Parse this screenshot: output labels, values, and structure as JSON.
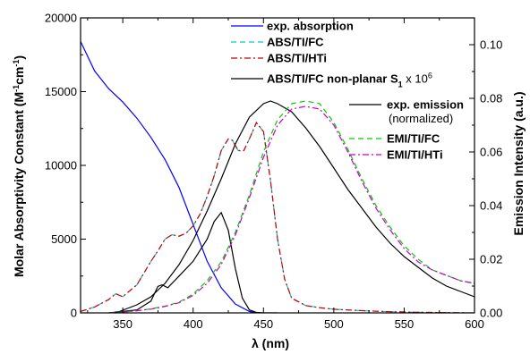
{
  "chart_data": {
    "type": "line",
    "xlabel": "λ (nm)",
    "ylabel_left": "Molar Absorptivity Constant (M-1cm-1)",
    "ylabel_left_parts": {
      "main": "Molar Absorptivity Constant (M",
      "sup1": "-1",
      "mid": "cm",
      "sup2": "-1",
      "end": ")"
    },
    "ylabel_right": "Emission Intensity (a.u.)",
    "xlim": [
      320,
      600
    ],
    "ylim_left": [
      0,
      20000
    ],
    "ylim_right": [
      0,
      0.11
    ],
    "x_ticks": [
      "350",
      "400",
      "450",
      "500",
      "550",
      "600"
    ],
    "y_left_ticks": [
      "0",
      "5000",
      "10000",
      "15000",
      "20000"
    ],
    "y_right_ticks": [
      "0.00",
      "0.02",
      "0.04",
      "0.06",
      "0.08",
      "0.10"
    ],
    "legend": [
      {
        "label": "exp. absorption",
        "color": "#0000ff",
        "dash": "solid"
      },
      {
        "label": "ABS/TI/FC",
        "color": "#00cccc",
        "dash": "dash"
      },
      {
        "label": "ABS/TI/HTi",
        "color": "#cc0000",
        "dash": "dashdot"
      },
      {
        "label": "ABS/TI/FC non-planar S1 x 10^6",
        "label_main": "ABS/TI/FC non-planar S",
        "label_sub": "1",
        "label_x": " x 10",
        "label_sup": "6",
        "color": "#000000",
        "dash": "solid"
      },
      {
        "label": "exp. emission",
        "sublabel": "(normalized)",
        "color": "#000000",
        "dash": "solid"
      },
      {
        "label": "EMI/TI/FC",
        "color": "#00cc00",
        "dash": "dash"
      },
      {
        "label": "EMI/TI/HTi",
        "color": "#cc00cc",
        "dash": "dashdot"
      }
    ],
    "series": [
      {
        "name": "exp. absorption",
        "axis": "left",
        "color": "#0000ff",
        "dash": "solid",
        "x": [
          320,
          330,
          340,
          350,
          360,
          370,
          380,
          390,
          400,
          410,
          420,
          430,
          440,
          445
        ],
        "y": [
          18400,
          16400,
          15200,
          14300,
          13200,
          11900,
          10400,
          8500,
          6000,
          3500,
          1700,
          600,
          100,
          0
        ]
      },
      {
        "name": "ABS/TI/FC",
        "axis": "left",
        "color": "#00cccc",
        "dash": "dash",
        "x": [
          320,
          330,
          340,
          345,
          350,
          360,
          370,
          375,
          380,
          385,
          390,
          395,
          400,
          405,
          410,
          415,
          420,
          425,
          428,
          432,
          436,
          440,
          445,
          450,
          455,
          460,
          465,
          470,
          480,
          490,
          500,
          520,
          540,
          560,
          580,
          600
        ],
        "y": [
          100,
          400,
          900,
          1300,
          1100,
          1900,
          3500,
          4200,
          5000,
          5300,
          5200,
          5400,
          5900,
          6700,
          7900,
          9300,
          11000,
          11800,
          11700,
          11000,
          11000,
          11800,
          12900,
          12300,
          9000,
          5000,
          2300,
          1000,
          500,
          350,
          250,
          150,
          80,
          40,
          20,
          0
        ]
      },
      {
        "name": "ABS/TI/HTi",
        "axis": "left",
        "color": "#cc0000",
        "dash": "dashdot",
        "x": [
          320,
          330,
          340,
          345,
          350,
          360,
          370,
          375,
          380,
          385,
          390,
          395,
          400,
          405,
          410,
          415,
          420,
          425,
          428,
          432,
          436,
          440,
          445,
          450,
          455,
          460,
          465,
          470,
          480,
          490,
          500,
          520,
          540,
          560,
          580,
          600
        ],
        "y": [
          100,
          400,
          900,
          1300,
          1100,
          1900,
          3500,
          4200,
          5000,
          5300,
          5200,
          5400,
          5900,
          6700,
          7900,
          9300,
          11000,
          11800,
          11700,
          11000,
          11000,
          11800,
          12900,
          12300,
          9000,
          5000,
          2300,
          1000,
          500,
          350,
          250,
          150,
          80,
          40,
          20,
          0
        ]
      },
      {
        "name": "ABS/TI/FC non-planar S1 x 10^6",
        "axis": "left",
        "color": "#000000",
        "dash": "solid",
        "x": [
          340,
          360,
          370,
          375,
          378,
          382,
          390,
          400,
          410,
          415,
          420,
          425,
          430,
          435,
          440,
          445,
          450,
          460
        ],
        "y": [
          0,
          200,
          800,
          1800,
          1900,
          1700,
          2500,
          3500,
          5000,
          6200,
          6800,
          5600,
          3000,
          1000,
          200,
          30,
          0,
          0
        ]
      },
      {
        "name": "exp. emission",
        "axis": "right",
        "color": "#000000",
        "dash": "solid",
        "x": [
          345,
          350,
          360,
          370,
          380,
          390,
          400,
          410,
          420,
          430,
          440,
          450,
          455,
          460,
          470,
          480,
          490,
          500,
          510,
          520,
          530,
          540,
          550,
          560,
          570,
          580,
          590,
          600
        ],
        "y": [
          0,
          0.001,
          0.003,
          0.006,
          0.011,
          0.018,
          0.027,
          0.038,
          0.05,
          0.063,
          0.073,
          0.078,
          0.079,
          0.078,
          0.075,
          0.069,
          0.062,
          0.054,
          0.046,
          0.039,
          0.032,
          0.026,
          0.021,
          0.017,
          0.013,
          0.01,
          0.008,
          0.006
        ]
      },
      {
        "name": "EMI/TI/FC",
        "axis": "right",
        "color": "#00cc00",
        "dash": "dash",
        "x": [
          340,
          350,
          360,
          370,
          380,
          390,
          400,
          410,
          420,
          430,
          440,
          450,
          460,
          470,
          480,
          490,
          500,
          510,
          520,
          530,
          540,
          550,
          560,
          570,
          580,
          590,
          600
        ],
        "y": [
          0,
          0.0003,
          0.0008,
          0.0015,
          0.0025,
          0.004,
          0.007,
          0.012,
          0.019,
          0.03,
          0.044,
          0.06,
          0.072,
          0.078,
          0.079,
          0.078,
          0.071,
          0.061,
          0.05,
          0.04,
          0.032,
          0.025,
          0.02,
          0.016,
          0.014,
          0.012,
          0.011
        ]
      },
      {
        "name": "EMI/TI/HTi",
        "axis": "right",
        "color": "#cc00cc",
        "dash": "dashdot",
        "x": [
          340,
          350,
          360,
          370,
          380,
          390,
          400,
          410,
          420,
          430,
          440,
          450,
          460,
          470,
          480,
          490,
          500,
          510,
          520,
          530,
          540,
          550,
          560,
          570,
          580,
          590,
          600
        ],
        "y": [
          0,
          0.0003,
          0.0008,
          0.0014,
          0.0024,
          0.0038,
          0.0065,
          0.011,
          0.018,
          0.029,
          0.043,
          0.058,
          0.07,
          0.076,
          0.077,
          0.076,
          0.07,
          0.06,
          0.049,
          0.039,
          0.031,
          0.024,
          0.019,
          0.016,
          0.014,
          0.012,
          0.011
        ]
      }
    ]
  }
}
